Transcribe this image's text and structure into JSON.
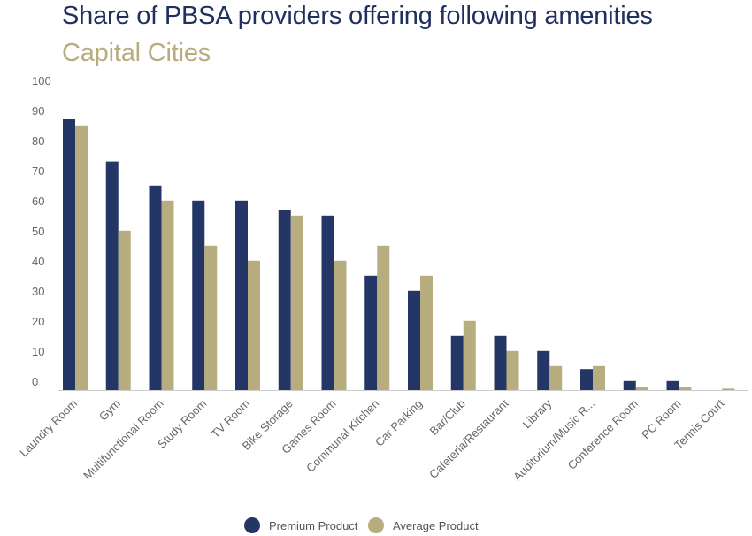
{
  "chart_data": {
    "type": "bar",
    "title": "Share of PBSA providers offering following amenities",
    "subtitle": "Capital Cities",
    "categories": [
      "Laundry Room",
      "Gym",
      "Multifunctional Room",
      "Study Room",
      "TV Room",
      "Bike Storage",
      "Games Room",
      "Communal Kitchen",
      "Car Parking",
      "Bar/Club",
      "Cafeteria/Restaurant",
      "Library",
      "Auditorium/Music R...",
      "Conference Room",
      "PC Room",
      "Tennis Court"
    ],
    "series": [
      {
        "name": "Premium Product",
        "color": "#243665",
        "values": [
          90,
          76,
          68,
          63,
          63,
          60,
          58,
          38,
          33,
          18,
          18,
          13,
          7,
          3,
          3,
          0
        ]
      },
      {
        "name": "Average Product",
        "color": "#b8ad7f",
        "values": [
          88,
          53,
          63,
          48,
          43,
          58,
          43,
          48,
          38,
          23,
          13,
          8,
          8,
          1,
          1,
          0.5
        ]
      }
    ],
    "yticks": [
      "0",
      "10",
      "20",
      "30",
      "40",
      "50",
      "60",
      "70",
      "80",
      "90",
      "100"
    ],
    "ylim": [
      0,
      100
    ],
    "grid": false,
    "legend_position": "bottom"
  }
}
